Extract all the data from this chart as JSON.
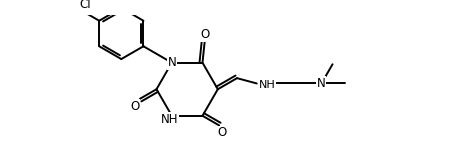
{
  "figsize": [
    4.68,
    1.68
  ],
  "dpi": 100,
  "bg_color": "#ffffff",
  "line_color": "#000000",
  "line_width": 1.4,
  "font_size": 8.5,
  "xlim": [
    0,
    10
  ],
  "ylim": [
    0,
    3.6
  ]
}
